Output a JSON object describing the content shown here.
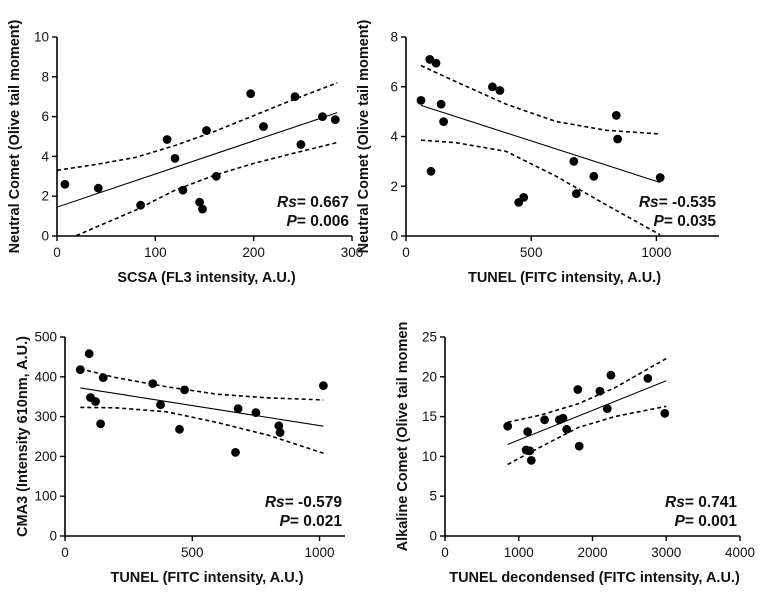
{
  "chart_data": [
    {
      "id": "A",
      "type": "scatter",
      "xlabel": "SCSA (FL3 intensity, A.U.)",
      "ylabel": "Neutral Comet (Olive tail moment)",
      "xlim": [
        0,
        300
      ],
      "ylim": [
        0,
        10
      ],
      "xticks": [
        0,
        100,
        200,
        300
      ],
      "yticks": [
        0,
        2,
        4,
        6,
        8,
        10
      ],
      "x": [
        8,
        42,
        85,
        112,
        120,
        128,
        145,
        148,
        152,
        162,
        197,
        210,
        242,
        248,
        270,
        283
      ],
      "y": [
        2.6,
        2.4,
        1.55,
        4.85,
        3.9,
        2.3,
        1.7,
        1.35,
        5.3,
        3.0,
        7.15,
        5.5,
        7.0,
        4.6,
        6.0,
        5.85
      ],
      "fit_line": {
        "x": [
          0,
          285
        ],
        "y": [
          1.45,
          6.2
        ]
      },
      "ci_upper": {
        "x": [
          0,
          40,
          80,
          120,
          160,
          200,
          240,
          285
        ],
        "y": [
          3.3,
          3.6,
          3.95,
          4.55,
          5.25,
          6.05,
          6.85,
          7.7
        ]
      },
      "ci_lower": {
        "x": [
          0,
          40,
          80,
          120,
          160,
          200,
          240,
          285
        ],
        "y": [
          -0.4,
          0.45,
          1.3,
          2.3,
          3.05,
          3.65,
          4.15,
          4.7
        ]
      },
      "stat_r_label": "Rs",
      "stat_r_value": "= 0.667",
      "stat_p_label": "P",
      "stat_p_value": "= 0.006"
    },
    {
      "id": "B",
      "type": "scatter",
      "xlabel": "TUNEL (FITC intensity, A.U.)",
      "ylabel": "Neutral Comet (Olive tail moment)",
      "xlim": [
        0,
        1250
      ],
      "ylim": [
        0,
        8
      ],
      "xticks": [
        0,
        500,
        1000
      ],
      "yticks": [
        0,
        2,
        4,
        6,
        8
      ],
      "x": [
        60,
        95,
        100,
        120,
        140,
        150,
        345,
        375,
        450,
        470,
        670,
        680,
        750,
        840,
        845,
        1015
      ],
      "y": [
        5.45,
        7.1,
        2.6,
        6.95,
        5.3,
        4.6,
        6.0,
        5.85,
        1.35,
        1.55,
        3.0,
        1.7,
        2.4,
        4.85,
        3.9,
        2.35
      ],
      "fit_line": {
        "x": [
          60,
          1015
        ],
        "y": [
          5.25,
          2.15
        ]
      },
      "ci_upper": {
        "x": [
          60,
          200,
          400,
          600,
          800,
          1015
        ],
        "y": [
          6.85,
          6.2,
          5.3,
          4.6,
          4.25,
          4.1
        ]
      },
      "ci_lower": {
        "x": [
          60,
          200,
          400,
          600,
          800,
          1015
        ],
        "y": [
          3.85,
          3.75,
          3.4,
          2.4,
          1.25,
          0.05
        ]
      },
      "stat_r_label": "Rs",
      "stat_r_value": "= -0.535",
      "stat_p_label": "P",
      "stat_p_value": "= 0.035"
    },
    {
      "id": "C",
      "type": "scatter",
      "xlabel": "TUNEL (FITC intensity, A.U.)",
      "ylabel": "CMA3 (Intensity 610nm, A.U.)",
      "xlim": [
        0,
        1100
      ],
      "ylim": [
        0,
        500
      ],
      "xticks": [
        0,
        500,
        1000
      ],
      "yticks": [
        0,
        100,
        200,
        300,
        400,
        500
      ],
      "x": [
        60,
        95,
        100,
        120,
        140,
        150,
        345,
        375,
        450,
        470,
        670,
        680,
        750,
        840,
        845,
        1015
      ],
      "y": [
        418,
        458,
        348,
        338,
        282,
        398,
        383,
        330,
        268,
        367,
        210,
        320,
        310,
        277,
        260,
        378
      ],
      "fit_line": {
        "x": [
          60,
          1015
        ],
        "y": [
          372,
          276
        ]
      },
      "ci_upper": {
        "x": [
          60,
          200,
          400,
          600,
          800,
          1015
        ],
        "y": [
          420,
          398,
          375,
          356,
          347,
          342
        ]
      },
      "ci_lower": {
        "x": [
          60,
          200,
          400,
          600,
          800,
          1015
        ],
        "y": [
          323,
          322,
          312,
          285,
          253,
          208
        ]
      },
      "stat_r_label": "Rs",
      "stat_r_value": "= -0.579",
      "stat_p_label": "P",
      "stat_p_value": "= 0.021"
    },
    {
      "id": "D",
      "type": "scatter",
      "xlabel": "TUNEL decondensed (FITC intensity, A.U.)",
      "ylabel": "Alkaline Comet (Olive tail momen",
      "xlim": [
        0,
        4000
      ],
      "ylim": [
        0,
        25
      ],
      "xticks": [
        0,
        1000,
        2000,
        3000,
        4000
      ],
      "yticks": [
        0,
        5,
        10,
        15,
        20,
        25
      ],
      "x": [
        850,
        1100,
        1120,
        1150,
        1170,
        1350,
        1550,
        1600,
        1650,
        1800,
        1820,
        2100,
        2200,
        2250,
        2750,
        2980
      ],
      "y": [
        13.8,
        10.8,
        13.1,
        10.7,
        9.5,
        14.6,
        14.6,
        14.8,
        13.4,
        18.4,
        11.3,
        18.2,
        16.0,
        20.2,
        19.8,
        15.4
      ],
      "fit_line": {
        "x": [
          850,
          3000
        ],
        "y": [
          11.5,
          19.5
        ]
      },
      "ci_upper": {
        "x": [
          850,
          1300,
          1800,
          2300,
          3000
        ],
        "y": [
          14.3,
          15.2,
          16.6,
          18.6,
          22.3
        ]
      },
      "ci_lower": {
        "x": [
          850,
          1300,
          1800,
          2300,
          3000
        ],
        "y": [
          9.0,
          11.2,
          13.6,
          15.0,
          16.3
        ]
      },
      "stat_r_label": "Rs",
      "stat_r_value": "= 0.741",
      "stat_p_label": "P",
      "stat_p_value": "= 0.001"
    }
  ]
}
